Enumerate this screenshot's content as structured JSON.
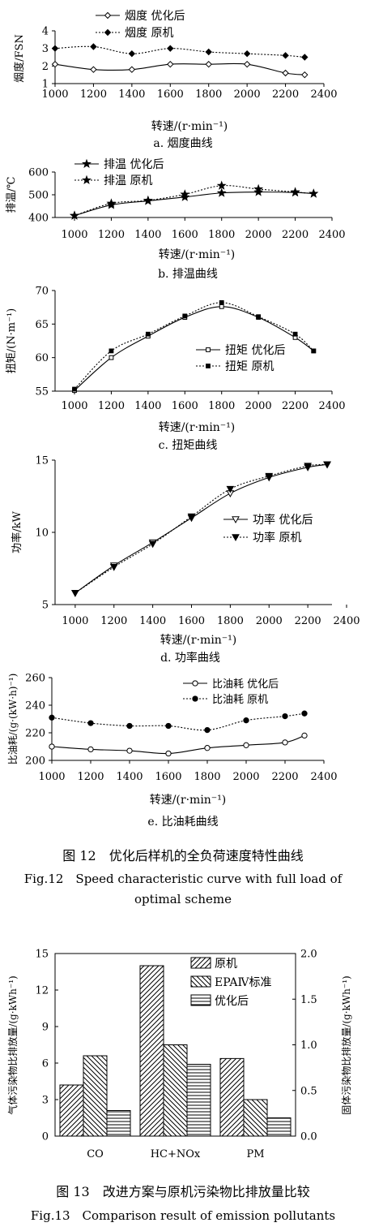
{
  "chart_data": [
    {
      "type": "line",
      "caption": "a. 烟度曲线",
      "xlabel": "转速/(r·min⁻¹)",
      "ylabel": "烟度/FSN",
      "xlim": [
        1000,
        2400
      ],
      "xticks": [
        1000,
        1200,
        1400,
        1600,
        1800,
        2000,
        2200,
        2400
      ],
      "ylim": [
        1,
        4
      ],
      "yticks": [
        1,
        2,
        3,
        4
      ],
      "legend_position": "top-left",
      "series": [
        {
          "name": "烟度 优化后",
          "marker": "diamond-open",
          "dash": "solid",
          "x": [
            1000,
            1200,
            1400,
            1600,
            1800,
            2000,
            2200,
            2300
          ],
          "y": [
            2.1,
            1.8,
            1.8,
            2.1,
            2.1,
            2.1,
            1.6,
            1.5
          ]
        },
        {
          "name": "烟度 原机",
          "marker": "diamond-filled",
          "dash": "dotted",
          "x": [
            1000,
            1200,
            1400,
            1600,
            1800,
            2000,
            2200,
            2300
          ],
          "y": [
            3.0,
            3.1,
            2.7,
            3.0,
            2.8,
            2.7,
            2.6,
            2.5
          ]
        }
      ]
    },
    {
      "type": "line",
      "caption": "b. 排温曲线",
      "xlabel": "转速/(r·min⁻¹)",
      "ylabel": "排温/℃",
      "xlim": [
        1000,
        2400
      ],
      "xticks": [
        1000,
        1200,
        1400,
        1600,
        1800,
        2000,
        2200,
        2400
      ],
      "ylim": [
        400,
        600
      ],
      "yticks": [
        400,
        500,
        600
      ],
      "legend_position": "top-left",
      "series": [
        {
          "name": "排温 优化后",
          "marker": "star",
          "dash": "solid",
          "x": [
            1000,
            1200,
            1400,
            1600,
            1800,
            2000,
            2200,
            2300
          ],
          "y": [
            408,
            455,
            473,
            490,
            508,
            512,
            510,
            505
          ]
        },
        {
          "name": "排温 原机",
          "marker": "star",
          "dash": "dotted",
          "x": [
            1000,
            1200,
            1400,
            1600,
            1800,
            2000,
            2200,
            2300
          ],
          "y": [
            408,
            462,
            475,
            502,
            540,
            525,
            512,
            505
          ]
        }
      ]
    },
    {
      "type": "line",
      "caption": "c. 扭矩曲线",
      "xlabel": "转速/(r·min⁻¹)",
      "ylabel": "扭矩/(N·m⁻¹)",
      "xlim": [
        1000,
        2400
      ],
      "xticks": [
        1000,
        1200,
        1400,
        1600,
        1800,
        2000,
        2200,
        2400
      ],
      "ylim": [
        55,
        70
      ],
      "yticks": [
        55,
        60,
        65,
        70
      ],
      "legend_position": "bottom-center",
      "series": [
        {
          "name": "扭矩 优化后",
          "marker": "square-open",
          "dash": "solid",
          "x": [
            1000,
            1200,
            1400,
            1600,
            1800,
            2000,
            2200,
            2300
          ],
          "y": [
            55.1,
            60.0,
            63.2,
            66.0,
            67.6,
            66.0,
            63.0,
            61.0
          ]
        },
        {
          "name": "扭矩 原机",
          "marker": "square-filled",
          "dash": "dotted",
          "x": [
            1000,
            1200,
            1400,
            1600,
            1800,
            2000,
            2200,
            2300
          ],
          "y": [
            55.3,
            61.0,
            63.5,
            66.2,
            68.2,
            66.1,
            63.5,
            61.0
          ]
        }
      ]
    },
    {
      "type": "line",
      "caption": "d. 功率曲线",
      "xlabel": "转速/(r·min⁻¹)",
      "ylabel": "功率/kW",
      "xlim": [
        800,
        2400
      ],
      "xticks": [
        1000,
        1200,
        1400,
        1600,
        1800,
        2000,
        2200,
        2400
      ],
      "ylim": [
        5,
        15
      ],
      "yticks": [
        5,
        10,
        15
      ],
      "legend_position": "center-right",
      "series": [
        {
          "name": "功率 优化后",
          "marker": "triangle-down-open",
          "dash": "solid",
          "x": [
            1000,
            1200,
            1400,
            1600,
            1800,
            2000,
            2200,
            2300
          ],
          "y": [
            5.8,
            7.7,
            9.3,
            11.0,
            12.7,
            13.8,
            14.5,
            14.7
          ]
        },
        {
          "name": "功率 原机",
          "marker": "triangle-down-filled",
          "dash": "dotted",
          "x": [
            1000,
            1200,
            1400,
            1600,
            1800,
            2000,
            2200,
            2300
          ],
          "y": [
            5.8,
            7.6,
            9.2,
            11.1,
            13.0,
            13.9,
            14.6,
            14.7
          ]
        }
      ]
    },
    {
      "type": "line",
      "caption": "e. 比油耗曲线",
      "xlabel": "转速/(r·min⁻¹)",
      "ylabel": "比油耗/(g·(kW·h)⁻¹)",
      "xlim": [
        1000,
        2400
      ],
      "xticks": [
        1000,
        1200,
        1400,
        1600,
        1800,
        2000,
        2200,
        2400
      ],
      "ylim": [
        200,
        260
      ],
      "yticks": [
        200,
        220,
        240,
        260
      ],
      "legend_position": "top-right",
      "series": [
        {
          "name": "比油耗 优化后",
          "marker": "circle-open",
          "dash": "solid",
          "x": [
            1000,
            1200,
            1400,
            1600,
            1800,
            2000,
            2200,
            2300
          ],
          "y": [
            210,
            208,
            207,
            205,
            209,
            211,
            213,
            218
          ]
        },
        {
          "name": "比油耗 原机",
          "marker": "circle-filled",
          "dash": "dotted",
          "x": [
            1000,
            1200,
            1400,
            1600,
            1800,
            2000,
            2200,
            2300
          ],
          "y": [
            231,
            227,
            225,
            225,
            222,
            229,
            232,
            234
          ]
        }
      ]
    },
    {
      "type": "bar",
      "categories": [
        "CO",
        "HC+NOx",
        "PM"
      ],
      "ylabel": "气体污染物比排放量/(g·kWh⁻¹)",
      "y2label": "固体污染物比排放量/(g·kWh⁻¹)",
      "ylim": [
        0,
        15
      ],
      "yticks": [
        0,
        3,
        6,
        9,
        12,
        15
      ],
      "y2lim": [
        0,
        2.0
      ],
      "y2ticks": [
        "0.0",
        "0.5",
        "1.0",
        "1.5",
        "2.0"
      ],
      "legend_position": "top-right",
      "series": [
        {
          "name": "原机",
          "pattern": "diag-right",
          "values": [
            4.2,
            14.0,
            0.85
          ],
          "axes": [
            "left",
            "left",
            "right"
          ]
        },
        {
          "name": "EPAⅣ标准",
          "pattern": "diag-left",
          "values": [
            6.6,
            7.5,
            0.4
          ],
          "axes": [
            "left",
            "left",
            "right"
          ]
        },
        {
          "name": "优化后",
          "pattern": "horizontal",
          "values": [
            2.1,
            5.9,
            0.2
          ],
          "axes": [
            "left",
            "left",
            "right"
          ]
        }
      ]
    }
  ],
  "captions": {
    "fig12_cn": "图 12　优化后样机的全负荷速度特性曲线",
    "fig12_en_line1": "Fig.12　Speed characteristic curve with full load of",
    "fig12_en_line2": "optimal scheme",
    "fig13_cn": "图 13　改进方案与原机污染物比排放量比较",
    "fig13_en": "Fig.13　Comparison result of emission pollutants"
  }
}
